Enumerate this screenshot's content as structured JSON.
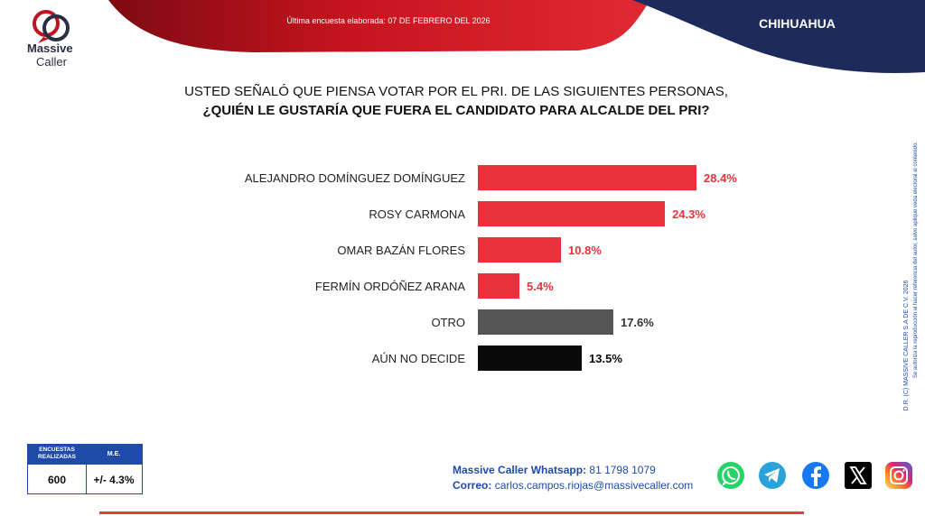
{
  "header": {
    "updated_text": "Última encuesta elaborada: 07 DE FEBRERO DEL 2026",
    "region": "CHIHUAHUA"
  },
  "logo": {
    "line1": "Massive",
    "line2": "Caller"
  },
  "question": {
    "line1": "USTED SEÑALÓ QUE PIENSA VOTAR POR EL PRI. DE LAS SIGUIENTES PERSONAS,",
    "line2": "¿QUIÉN LE GUSTARÍA QUE FUERA EL CANDIDATO PARA ALCALDE DEL PRI?"
  },
  "chart_data": {
    "type": "bar",
    "orientation": "horizontal",
    "title": "",
    "xlabel": "",
    "ylabel": "",
    "categories": [
      "ALEJANDRO DOMÍNGUEZ DOMÍNGUEZ",
      "ROSY CARMONA",
      "OMAR BAZÁN FLORES",
      "FERMÍN ORDÓÑEZ ARANA",
      "OTRO",
      "AÚN NO DECIDE"
    ],
    "values": [
      28.4,
      24.3,
      10.8,
      5.4,
      17.6,
      13.5
    ],
    "value_labels": [
      "28.4%",
      "24.3%",
      "10.8%",
      "5.4%",
      "17.6%",
      "13.5%"
    ],
    "bar_colors": [
      "#e8313a",
      "#e8313a",
      "#e8313a",
      "#e8313a",
      "#555555",
      "#0a0a0a"
    ],
    "label_colors": [
      "#e8313a",
      "#e8313a",
      "#e8313a",
      "#e8313a",
      "#333333",
      "#0a0a0a"
    ],
    "xlim": [
      0,
      28.4
    ],
    "grid": false,
    "legend": "none"
  },
  "copyright": {
    "line1": "D.R. (C) MASSIVE CALLER S.A DE C.V. 2026",
    "line2": "Se autoriza la reproducción al hacer referencia del autor, salvo aplique veda electoral al contenido."
  },
  "stats": {
    "header_surveys": "ENCUESTAS REALIZADAS",
    "header_me": "M.E.",
    "surveys": "600",
    "margin": "+/- 4.3%"
  },
  "contact": {
    "whatsapp_label": "Massive Caller Whatsapp:",
    "whatsapp_number": "81 1798 1079",
    "email_label": "Correo:",
    "email": "carlos.campos.riojas@massivecaller.com"
  },
  "colors": {
    "brand_red": "#c1121f",
    "brand_navy": "#1d2b5c",
    "accent_blue": "#1f4aa8"
  },
  "social_icons": [
    "whatsapp-icon",
    "telegram-icon",
    "facebook-icon",
    "x-icon",
    "instagram-icon"
  ]
}
